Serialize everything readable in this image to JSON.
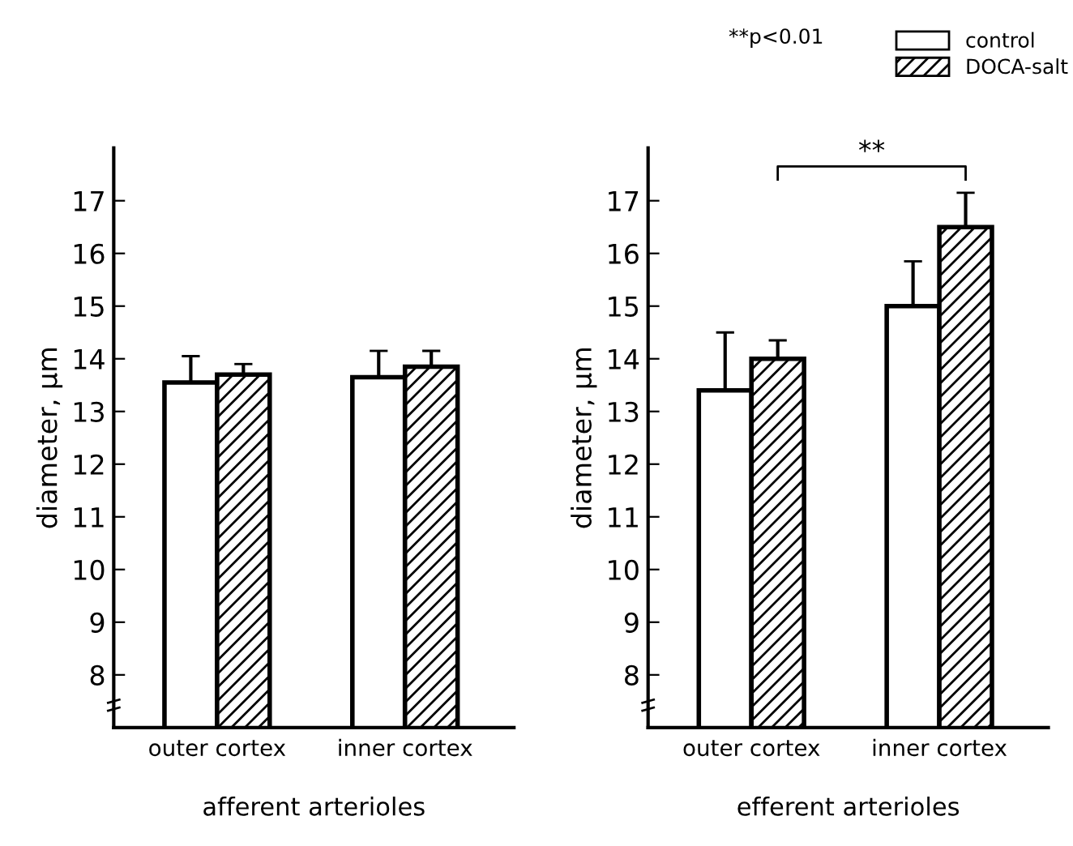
{
  "chart_data": [
    {
      "type": "bar",
      "xlabel": "afferent arterioles",
      "ylabel": "diameter, μm",
      "categories": [
        "outer cortex",
        "inner cortex"
      ],
      "series": [
        {
          "color": "#ffffff",
          "values": [
            13.55,
            13.65
          ],
          "errors": [
            [
              13.55,
              14.05
            ],
            [
              13.65,
              14.15
            ]
          ]
        },
        {
          "color": "#000000",
          "values": [
            13.7,
            13.85
          ],
          "errors": [
            [
              13.7,
              13.9
            ],
            [
              13.85,
              14.15
            ]
          ]
        }
      ],
      "ylim": [
        7,
        18
      ],
      "yticks": [
        {
          "value": 7,
          "label": null
        },
        8,
        9,
        10,
        11,
        12,
        13,
        14,
        15,
        16,
        17
      ],
      "grid": false,
      "legend": false
    },
    {
      "type": "bar",
      "xlabel": "efferent arterioles",
      "ylabel": "diameter, μm",
      "categories": [
        "outer cortex",
        "inner cortex"
      ],
      "series": [
        {
          "name": "control",
          "color": "#ffffff",
          "values": [
            13.4,
            15.0
          ],
          "errors": [
            [
              13.4,
              14.5
            ],
            [
              15.0,
              15.85
            ]
          ]
        },
        {
          "name": "DOCA-salt",
          "color": "#000000",
          "values": [
            14.0,
            16.5
          ],
          "errors": [
            [
              14.0,
              14.35
            ],
            [
              16.5,
              17.15
            ]
          ]
        }
      ],
      "ylim": [
        7,
        18
      ],
      "yticks": [
        {
          "value": 7,
          "label": null
        },
        8,
        9,
        10,
        11,
        12,
        13,
        14,
        15,
        16,
        17
      ],
      "grid": false,
      "legend": "top right",
      "annotations": [
        "**p<0.01",
        "**"
      ]
    }
  ]
}
